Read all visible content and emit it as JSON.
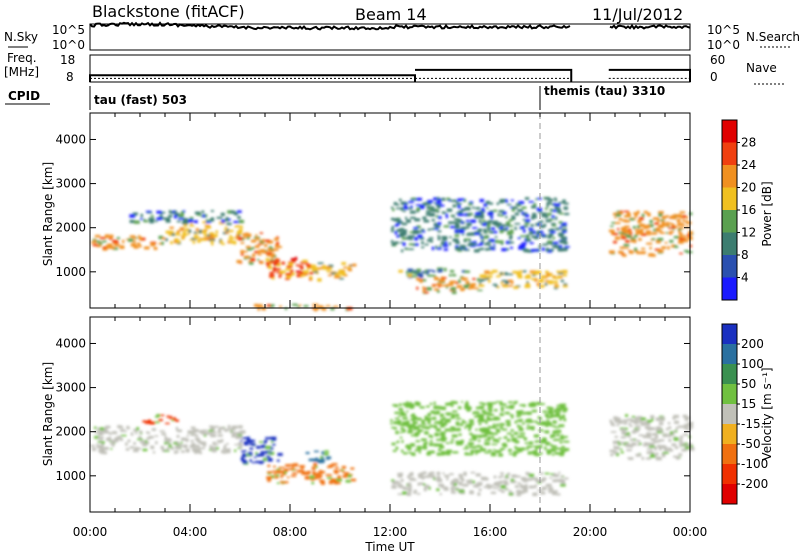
{
  "header": {
    "station": "Blackstone (fitACF)",
    "beam": "Beam 14",
    "date": "11/Jul/2012"
  },
  "noise_panel": {
    "left_label": "N.Sky",
    "right_label": "N.Search",
    "left_ticks": [
      "10^5",
      "10^0"
    ],
    "right_ticks": [
      "10^5",
      "10^0"
    ],
    "gap_start_hours": 19.25,
    "gap_end_hours": 20.75
  },
  "freq_panel": {
    "left_label_top": "Freq.",
    "left_label_bottom": "[MHz]",
    "left_ticks": [
      "18",
      "8"
    ],
    "right_label": "Nave",
    "right_ticks": [
      "60",
      "0"
    ],
    "freq_mhz": [
      {
        "start": 0,
        "end": 13,
        "value": 10.5
      },
      {
        "start": 13,
        "end": 19.25,
        "value": 12.5
      },
      {
        "start": 20.75,
        "end": 24,
        "value": 12.5
      }
    ],
    "nave_segments": [
      {
        "start": 0,
        "end": 13,
        "value": 8
      },
      {
        "start": 13,
        "end": 19.25,
        "value": 8
      },
      {
        "start": 20.75,
        "end": 24,
        "value": 8
      }
    ]
  },
  "cpid_panel": {
    "label": "CPID",
    "modes": [
      {
        "text": "tau (fast) 503",
        "start_hours": 0
      },
      {
        "text": "themis (tau) 3310",
        "start_hours": 18
      }
    ]
  },
  "power_panel": {
    "ylabel": "Slant Range [km]",
    "yticks": [
      "1000",
      "2000",
      "3000",
      "4000"
    ],
    "colorbar_label": "Power [dB]",
    "colorbar_ticks": [
      "4",
      "8",
      "12",
      "16",
      "20",
      "24",
      "28"
    ],
    "colors": [
      "#1a1aff",
      "#2a50b0",
      "#3c7d70",
      "#5aa050",
      "#f0c020",
      "#f09020",
      "#f04010",
      "#e00000"
    ]
  },
  "velocity_panel": {
    "ylabel": "Slant Range [km]",
    "yticks": [
      "1000",
      "2000",
      "3000",
      "4000"
    ],
    "colorbar_label": "Velocity [m s⁻¹]",
    "colorbar_ticks": [
      "200",
      "100",
      "50",
      "15",
      "-15",
      "-50",
      "-100",
      "-200"
    ],
    "colors": [
      "#1a30c0",
      "#2a70a0",
      "#3a9050",
      "#70c040",
      "#c0c0b8",
      "#f0b020",
      "#f07010",
      "#f03000",
      "#e00000"
    ]
  },
  "time_axis": {
    "label": "Time UT",
    "ticks": [
      "00:00",
      "04:00",
      "08:00",
      "12:00",
      "16:00",
      "20:00",
      "00:00"
    ]
  },
  "chart_data": {
    "type": "heatmap",
    "title": "Blackstone (fitACF)",
    "x_label": "Time UT",
    "y_label": "Slant Range [km]",
    "x_range_hours": [
      0,
      24
    ],
    "y_range_km": [
      180,
      4600
    ],
    "data_gap_hours": [
      19.25,
      20.75
    ],
    "power_regions_db": [
      {
        "t0": 0.0,
        "t1": 3.0,
        "r0": 1550,
        "r1": 1850,
        "level": 20
      },
      {
        "t0": 3.0,
        "t1": 6.0,
        "r0": 1650,
        "r1": 2150,
        "level": 18
      },
      {
        "t0": 1.5,
        "t1": 6.0,
        "r0": 2150,
        "r1": 2400,
        "level": 8
      },
      {
        "t0": 5.8,
        "t1": 7.5,
        "r0": 1200,
        "r1": 1900,
        "level": 20
      },
      {
        "t0": 7.0,
        "t1": 8.8,
        "r0": 850,
        "r1": 1350,
        "level": 26
      },
      {
        "t0": 8.8,
        "t1": 10.5,
        "r0": 850,
        "r1": 1250,
        "level": 18
      },
      {
        "t0": 6.5,
        "t1": 10.5,
        "r0": 180,
        "r1": 280,
        "level": 22
      },
      {
        "t0": 12.0,
        "t1": 15.0,
        "r0": 900,
        "r1": 1100,
        "level": 12
      },
      {
        "t0": 13.0,
        "t1": 15.5,
        "r0": 550,
        "r1": 900,
        "level": 22
      },
      {
        "t0": 15.5,
        "t1": 19.0,
        "r0": 650,
        "r1": 1050,
        "level": 16
      },
      {
        "t0": 12.0,
        "t1": 19.0,
        "r0": 1500,
        "r1": 2700,
        "level": 8
      },
      {
        "t0": 20.75,
        "t1": 24.0,
        "r0": 1400,
        "r1": 2400,
        "level": 20
      }
    ],
    "velocity_regions_ms": [
      {
        "t0": 0.0,
        "t1": 6.0,
        "r0": 1550,
        "r1": 2150,
        "level": 0
      },
      {
        "t0": 2.0,
        "t1": 3.5,
        "r0": 2200,
        "r1": 2400,
        "level": -200
      },
      {
        "t0": 6.0,
        "t1": 7.5,
        "r0": 1300,
        "r1": 1900,
        "level": 200
      },
      {
        "t0": 7.0,
        "t1": 10.5,
        "r0": 850,
        "r1": 1300,
        "level": -100
      },
      {
        "t0": 8.5,
        "t1": 9.5,
        "r0": 1300,
        "r1": 1600,
        "level": 150
      },
      {
        "t0": 12.0,
        "t1": 19.0,
        "r0": 600,
        "r1": 1100,
        "level": 0
      },
      {
        "t0": 12.0,
        "t1": 19.0,
        "r0": 1500,
        "r1": 2700,
        "level": 15
      },
      {
        "t0": 20.75,
        "t1": 24.0,
        "r0": 1400,
        "r1": 2400,
        "level": 0
      }
    ]
  }
}
